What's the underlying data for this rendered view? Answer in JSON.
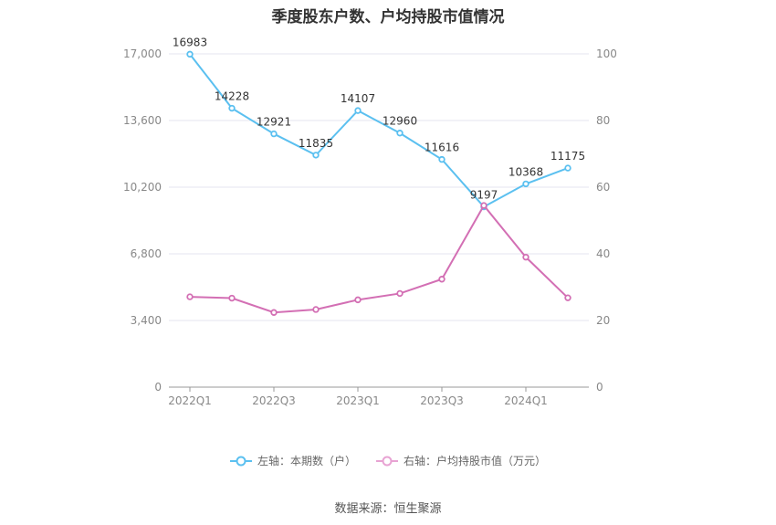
{
  "chart_data": {
    "type": "line",
    "title": "季度股东户数、户均持股市值情况",
    "categories": [
      "2022Q1",
      "2022Q2",
      "2022Q3",
      "2022Q4",
      "2023Q1",
      "2023Q2",
      "2023Q3",
      "2023Q4",
      "2024Q1",
      "2024Q2"
    ],
    "x_tick_labels": [
      "2022Q1",
      "",
      "2022Q3",
      "",
      "2023Q1",
      "",
      "2023Q3",
      "",
      "2024Q1",
      ""
    ],
    "left_axis": {
      "ticks": [
        "0",
        "3,400",
        "6,800",
        "10,200",
        "13,600",
        "17,000"
      ],
      "ylim": [
        0,
        17000
      ]
    },
    "right_axis": {
      "ticks": [
        "0",
        "20",
        "40",
        "60",
        "80",
        "100"
      ],
      "ylim": [
        0,
        100
      ]
    },
    "series": [
      {
        "name": "左轴：本期数（户）",
        "axis": "left",
        "color": "#5bc0f0",
        "values": [
          16983,
          14228,
          12921,
          11835,
          14107,
          12960,
          11616,
          9197,
          10368,
          11175
        ],
        "labels": [
          "16983",
          "14228",
          "12921",
          "11835",
          "14107",
          "12960",
          "11616",
          "9197",
          "10368",
          "11175"
        ]
      },
      {
        "name": "右轴：户均持股市值（万元）",
        "axis": "right",
        "color": "#d36fb4",
        "values": [
          27.1,
          26.7,
          22.4,
          23.3,
          26.2,
          28.1,
          32.4,
          54.5,
          39.0,
          26.8
        ]
      }
    ],
    "grid": true,
    "legend_position": "bottom"
  },
  "source_text": "数据来源：恒生聚源"
}
